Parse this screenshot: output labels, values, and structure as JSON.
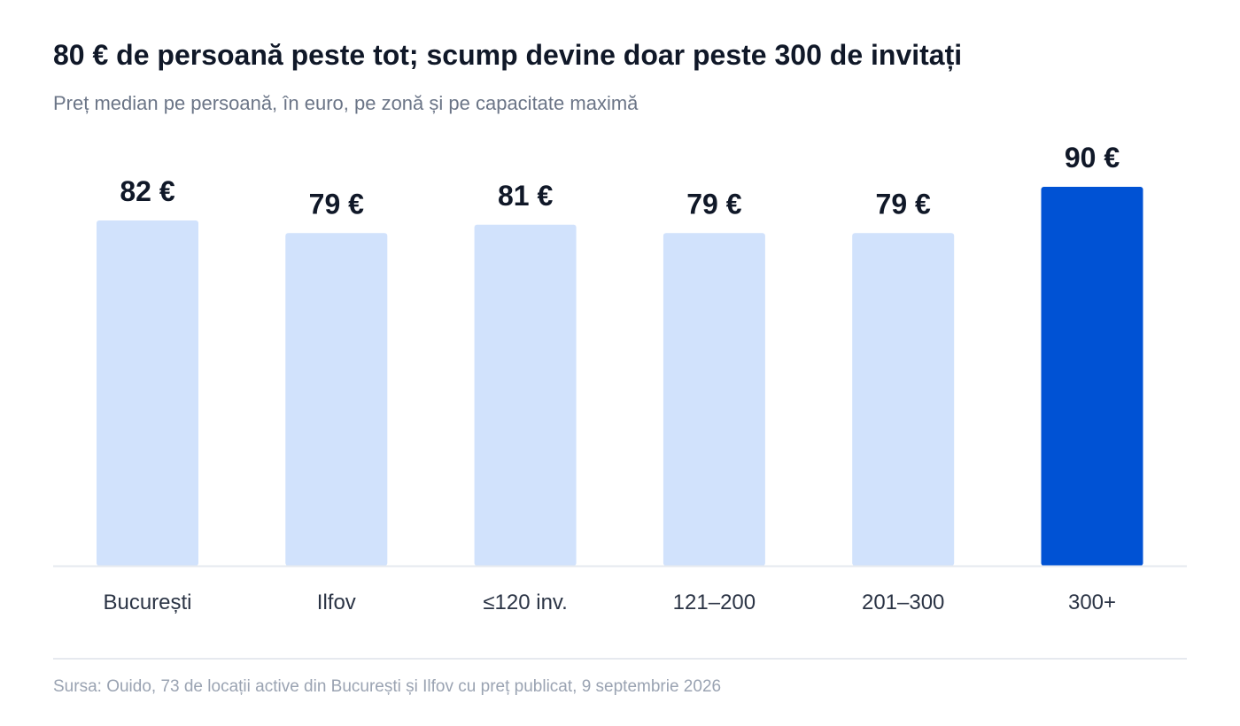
{
  "header": {
    "title": "80 € de persoană peste tot; scump devine doar peste 300 de invitați",
    "subtitle": "Preț median pe persoană, în euro, pe zonă și pe capacitate maximă"
  },
  "footer": {
    "source": "Sursa: Ouido, 73 de locații active din București și Ilfov cu preț publicat, 9 septembrie 2026"
  },
  "colors": {
    "bar": "#d1e2fc",
    "bar_highlight": "#0052d4",
    "value_label": "#101828",
    "category_label": "#2b3445",
    "baseline": "#e6e9ef"
  },
  "chart_data": {
    "type": "bar",
    "categories": [
      "București",
      "Ilfov",
      "≤120 inv.",
      "121–200",
      "201–300",
      "300+"
    ],
    "values": [
      82,
      79,
      81,
      79,
      79,
      90
    ],
    "value_labels": [
      "82 €",
      "79 €",
      "81 €",
      "79 €",
      "79 €",
      "90 €"
    ],
    "highlight_index": 5,
    "ylim": [
      0,
      90
    ],
    "grid": false,
    "legend": "none"
  }
}
